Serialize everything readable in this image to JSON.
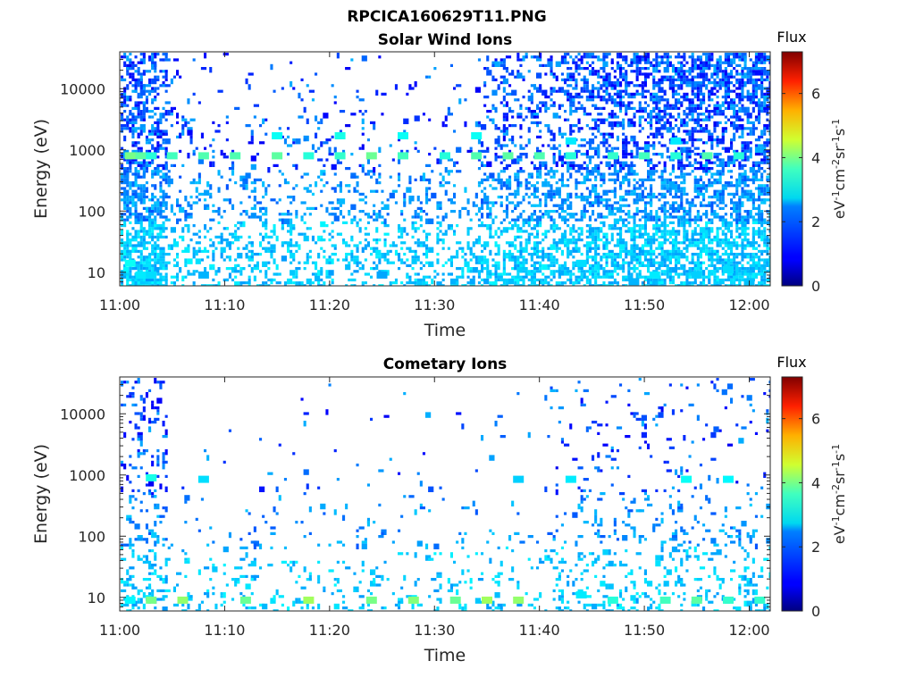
{
  "figure": {
    "title": "RPCICA160629T11.PNG"
  },
  "colorbar": {
    "title": "Flux",
    "label_parts": [
      "eV",
      "-1",
      "cm",
      "-2",
      "sr",
      "-1",
      "s",
      "-1"
    ],
    "min": 0,
    "max": 7.3,
    "ticks": [
      "0",
      "2",
      "4",
      "6"
    ],
    "colormap": "jet"
  },
  "chart_data": [
    {
      "type": "heatmap",
      "title": "Solar Wind Ions",
      "xlabel": "Time",
      "ylabel": "Energy (eV)",
      "xlim": [
        "11:00",
        "12:02"
      ],
      "ylim": [
        6,
        40000
      ],
      "yscale": "log",
      "xticks": [
        "11:00",
        "11:10",
        "11:20",
        "11:30",
        "11:40",
        "11:50",
        "12:00"
      ],
      "yticks": [
        "10",
        "100",
        "1000",
        "10000"
      ],
      "grid": false,
      "cells": [
        {
          "t": "11:01",
          "e": 800,
          "flux": 3.6
        },
        {
          "t": "11:02",
          "e": 800,
          "flux": 3.4
        },
        {
          "t": "11:03",
          "e": 800,
          "flux": 3.0
        },
        {
          "t": "11:05",
          "e": 800,
          "flux": 3.2
        },
        {
          "t": "11:08",
          "e": 800,
          "flux": 3.3
        },
        {
          "t": "11:11",
          "e": 800,
          "flux": 3.3
        },
        {
          "t": "11:15",
          "e": 800,
          "flux": 3.4
        },
        {
          "t": "11:18",
          "e": 800,
          "flux": 3.0
        },
        {
          "t": "11:21",
          "e": 800,
          "flux": 3.1
        },
        {
          "t": "11:24",
          "e": 800,
          "flux": 3.5
        },
        {
          "t": "11:27",
          "e": 800,
          "flux": 3.2
        },
        {
          "t": "11:31",
          "e": 800,
          "flux": 3.0
        },
        {
          "t": "11:34",
          "e": 800,
          "flux": 3.3
        },
        {
          "t": "11:37",
          "e": 800,
          "flux": 3.4
        },
        {
          "t": "11:40",
          "e": 800,
          "flux": 3.3
        },
        {
          "t": "11:43",
          "e": 800,
          "flux": 3.0
        },
        {
          "t": "11:47",
          "e": 800,
          "flux": 3.1
        },
        {
          "t": "11:50",
          "e": 800,
          "flux": 3.2
        },
        {
          "t": "11:53",
          "e": 800,
          "flux": 3.0
        },
        {
          "t": "11:56",
          "e": 800,
          "flux": 3.3
        },
        {
          "t": "11:59",
          "e": 800,
          "flux": 3.0
        },
        {
          "t": "11:15",
          "e": 1700,
          "flux": 2.8
        },
        {
          "t": "11:21",
          "e": 1700,
          "flux": 2.9
        },
        {
          "t": "11:27",
          "e": 1700,
          "flux": 2.8
        },
        {
          "t": "11:34",
          "e": 1700,
          "flux": 2.8
        },
        {
          "t": "11:43",
          "e": 1400,
          "flux": 2.6
        },
        {
          "t": "11:53",
          "e": 1400,
          "flux": 2.6
        },
        {
          "t": "11:01",
          "e": 14,
          "flux": 2.8
        },
        {
          "t": "11:02",
          "e": 9,
          "flux": 2.6
        },
        {
          "t": "11:03",
          "e": 9,
          "flux": 2.5
        },
        {
          "t": "11:08",
          "e": 9,
          "flux": 2.2
        },
        {
          "t": "11:25",
          "e": 9,
          "flux": 2.1
        },
        {
          "t": "11:44",
          "e": 14,
          "flux": 2.5
        },
        {
          "t": "11:51",
          "e": 9,
          "flux": 2.6
        },
        {
          "t": "11:55",
          "e": 9,
          "flux": 2.4
        },
        {
          "t": "11:58",
          "e": 11,
          "flux": 2.5
        },
        {
          "t": "11:49",
          "e": 7,
          "flux": 2.2
        },
        {
          "t": "12:00",
          "e": 7,
          "flux": 2.3
        }
      ]
    },
    {
      "type": "heatmap",
      "title": "Cometary Ions",
      "xlabel": "Time",
      "ylabel": "Energy (eV)",
      "xlim": [
        "11:00",
        "12:02"
      ],
      "ylim": [
        6,
        40000
      ],
      "yscale": "log",
      "xticks": [
        "11:00",
        "11:10",
        "11:20",
        "11:30",
        "11:40",
        "11:50",
        "12:00"
      ],
      "yticks": [
        "10",
        "100",
        "1000",
        "10000"
      ],
      "grid": false,
      "cells": [
        {
          "t": "11:01",
          "e": 9,
          "flux": 2.7
        },
        {
          "t": "11:03",
          "e": 9,
          "flux": 3.6
        },
        {
          "t": "11:06",
          "e": 9,
          "flux": 3.8
        },
        {
          "t": "11:12",
          "e": 9,
          "flux": 3.5
        },
        {
          "t": "11:18",
          "e": 9,
          "flux": 3.9
        },
        {
          "t": "11:24",
          "e": 9,
          "flux": 3.6
        },
        {
          "t": "11:28",
          "e": 9,
          "flux": 3.7
        },
        {
          "t": "11:32",
          "e": 9,
          "flux": 3.5
        },
        {
          "t": "11:35",
          "e": 9,
          "flux": 3.9
        },
        {
          "t": "11:38",
          "e": 9,
          "flux": 3.8
        },
        {
          "t": "11:44",
          "e": 11,
          "flux": 2.6
        },
        {
          "t": "11:47",
          "e": 9,
          "flux": 3.0
        },
        {
          "t": "11:52",
          "e": 9,
          "flux": 3.2
        },
        {
          "t": "11:55",
          "e": 9,
          "flux": 3.4
        },
        {
          "t": "11:58",
          "e": 9,
          "flux": 3.1
        },
        {
          "t": "12:01",
          "e": 9,
          "flux": 3.1
        },
        {
          "t": "11:03",
          "e": 900,
          "flux": 2.9
        },
        {
          "t": "11:08",
          "e": 850,
          "flux": 2.5
        },
        {
          "t": "11:38",
          "e": 850,
          "flux": 2.4
        },
        {
          "t": "11:43",
          "e": 850,
          "flux": 2.6
        },
        {
          "t": "11:54",
          "e": 850,
          "flux": 2.8
        },
        {
          "t": "11:58",
          "e": 850,
          "flux": 2.7
        }
      ]
    }
  ]
}
